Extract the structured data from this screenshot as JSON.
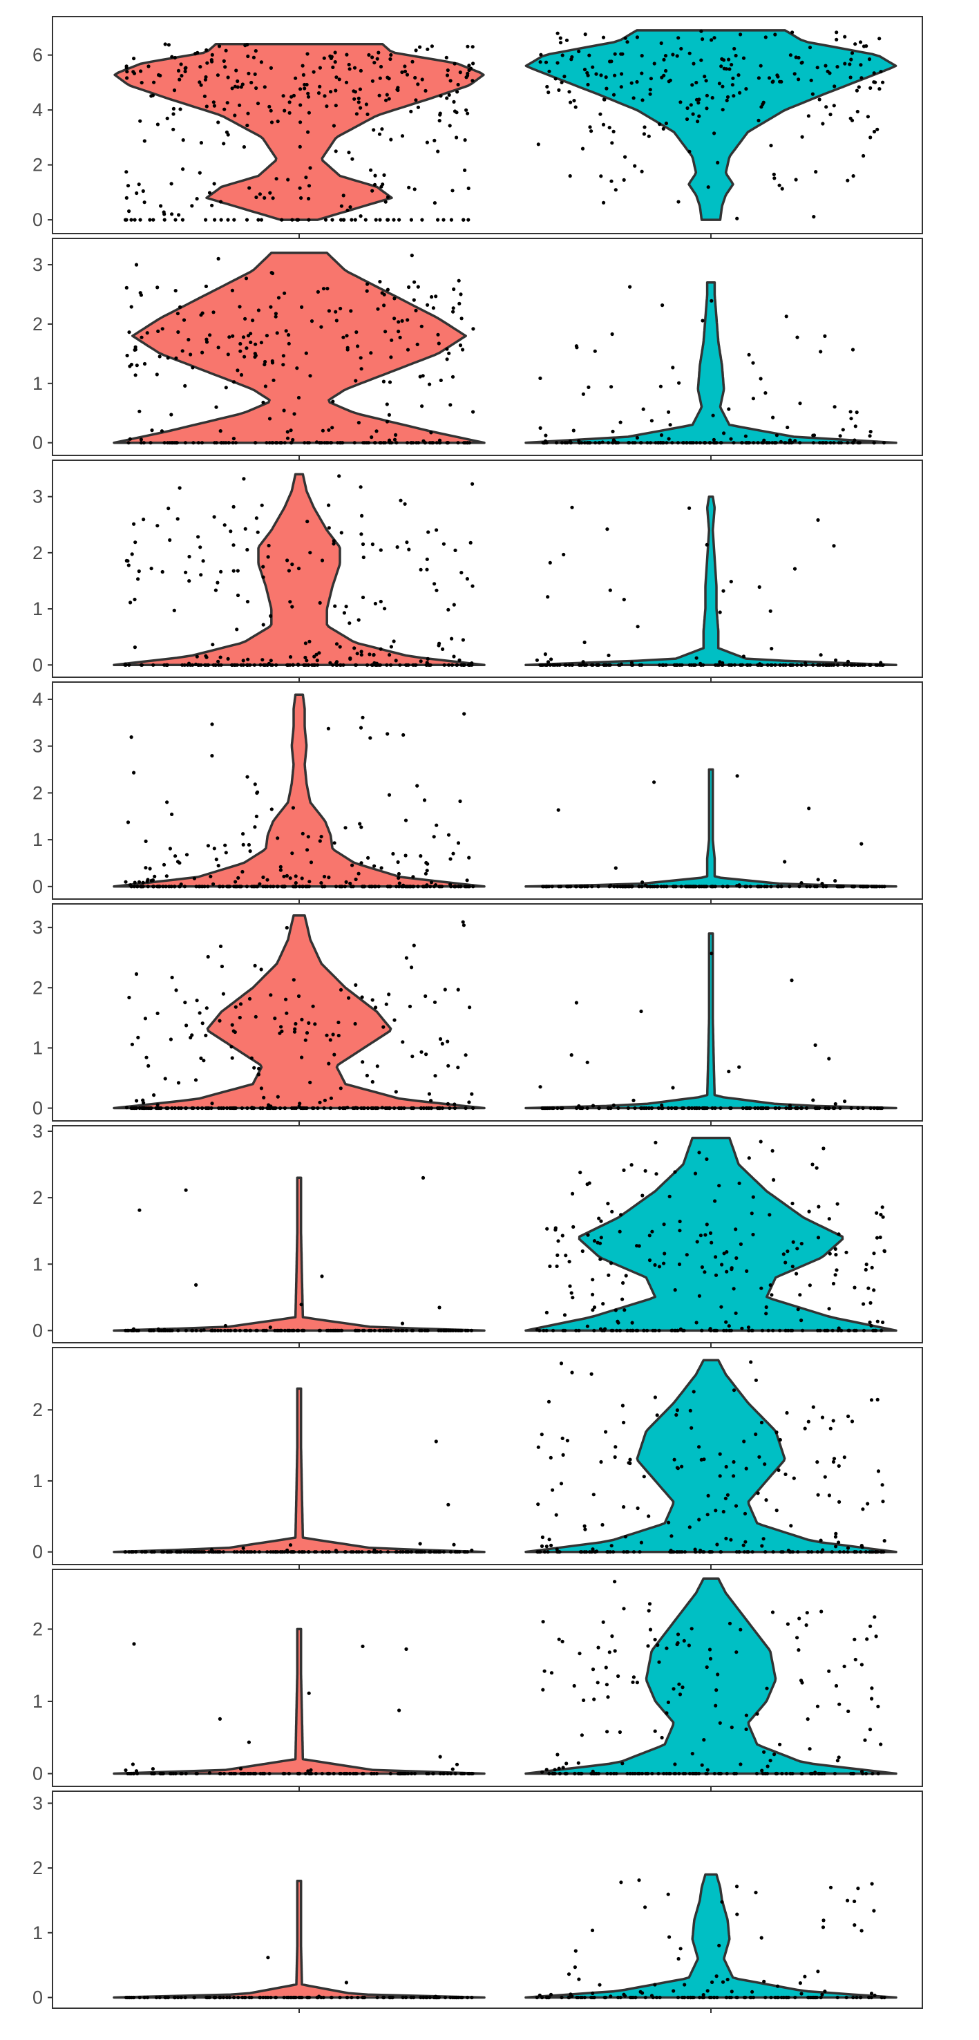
{
  "chart_data": {
    "type": "violin",
    "colors": {
      "group_1": "#F8766D",
      "group_2": "#00BFC4"
    },
    "panels": [
      {
        "ylim": [
          -0.3,
          7.2
        ],
        "ticks": [
          0,
          2,
          4,
          6
        ],
        "tick_labels": [
          "0",
          "2",
          "4",
          "6"
        ],
        "groups": [
          {
            "color": "#F8766D",
            "max": 6.4,
            "zero_frac": 0.12,
            "point_count": 330,
            "profile": [
              [
                0,
                0.1
              ],
              [
                0.4,
                0.3
              ],
              [
                0.8,
                0.5
              ],
              [
                1.2,
                0.42
              ],
              [
                1.6,
                0.22
              ],
              [
                2.2,
                0.12
              ],
              [
                3.0,
                0.2
              ],
              [
                3.8,
                0.42
              ],
              [
                4.4,
                0.7
              ],
              [
                4.9,
                0.92
              ],
              [
                5.3,
                1.0
              ],
              [
                5.7,
                0.85
              ],
              [
                6.1,
                0.5
              ],
              [
                6.4,
                0.45
              ]
            ]
          },
          {
            "color": "#00BFC4",
            "max": 6.9,
            "zero_frac": 0.0,
            "point_count": 230,
            "profile": [
              [
                0,
                0.05
              ],
              [
                0.5,
                0.06
              ],
              [
                0.9,
                0.08
              ],
              [
                1.3,
                0.12
              ],
              [
                1.7,
                0.08
              ],
              [
                2.3,
                0.1
              ],
              [
                3.2,
                0.2
              ],
              [
                4.0,
                0.4
              ],
              [
                4.6,
                0.62
              ],
              [
                5.2,
                0.85
              ],
              [
                5.6,
                1.0
              ],
              [
                6.0,
                0.9
              ],
              [
                6.5,
                0.5
              ],
              [
                6.9,
                0.4
              ]
            ]
          }
        ]
      },
      {
        "ylim": [
          -0.12,
          3.35
        ],
        "ticks": [
          0,
          1,
          2,
          3
        ],
        "tick_labels": [
          "0",
          "1",
          "2",
          "3"
        ],
        "groups": [
          {
            "color": "#F8766D",
            "max": 3.2,
            "zero_frac": 0.3,
            "point_count": 300,
            "profile": [
              [
                0,
                1.0
              ],
              [
                0.2,
                0.7
              ],
              [
                0.5,
                0.3
              ],
              [
                0.7,
                0.15
              ],
              [
                0.9,
                0.25
              ],
              [
                1.2,
                0.5
              ],
              [
                1.5,
                0.75
              ],
              [
                1.8,
                0.9
              ],
              [
                2.1,
                0.75
              ],
              [
                2.5,
                0.5
              ],
              [
                2.9,
                0.25
              ],
              [
                3.2,
                0.15
              ]
            ]
          },
          {
            "color": "#00BFC4",
            "max": 2.7,
            "zero_frac": 0.7,
            "point_count": 180,
            "profile": [
              [
                0,
                1.0
              ],
              [
                0.1,
                0.45
              ],
              [
                0.3,
                0.1
              ],
              [
                0.6,
                0.05
              ],
              [
                0.9,
                0.07
              ],
              [
                1.3,
                0.06
              ],
              [
                1.7,
                0.04
              ],
              [
                2.1,
                0.03
              ],
              [
                2.5,
                0.02
              ],
              [
                2.7,
                0.02
              ]
            ]
          }
        ]
      },
      {
        "ylim": [
          -0.12,
          3.55
        ],
        "ticks": [
          0,
          1,
          2,
          3
        ],
        "tick_labels": [
          "0",
          "1",
          "2",
          "3"
        ],
        "groups": [
          {
            "color": "#F8766D",
            "max": 3.4,
            "zero_frac": 0.4,
            "point_count": 280,
            "profile": [
              [
                0,
                1.0
              ],
              [
                0.15,
                0.6
              ],
              [
                0.4,
                0.3
              ],
              [
                0.7,
                0.15
              ],
              [
                1.0,
                0.15
              ],
              [
                1.4,
                0.18
              ],
              [
                1.8,
                0.22
              ],
              [
                2.1,
                0.22
              ],
              [
                2.4,
                0.15
              ],
              [
                2.8,
                0.08
              ],
              [
                3.1,
                0.04
              ],
              [
                3.4,
                0.02
              ]
            ]
          },
          {
            "color": "#00BFC4",
            "max": 3.0,
            "zero_frac": 0.8,
            "point_count": 170,
            "profile": [
              [
                0,
                1.0
              ],
              [
                0.1,
                0.2
              ],
              [
                0.3,
                0.04
              ],
              [
                0.6,
                0.04
              ],
              [
                1.0,
                0.03
              ],
              [
                1.4,
                0.03
              ],
              [
                1.9,
                0.02
              ],
              [
                2.4,
                0.01
              ],
              [
                2.8,
                0.02
              ],
              [
                3.0,
                0.01
              ]
            ]
          }
        ]
      },
      {
        "ylim": [
          -0.15,
          4.25
        ],
        "ticks": [
          0,
          1,
          2,
          3,
          4
        ],
        "tick_labels": [
          "0",
          "1",
          "2",
          "3",
          "4"
        ],
        "groups": [
          {
            "color": "#F8766D",
            "max": 4.1,
            "zero_frac": 0.5,
            "point_count": 260,
            "profile": [
              [
                0,
                1.0
              ],
              [
                0.2,
                0.55
              ],
              [
                0.5,
                0.3
              ],
              [
                0.8,
                0.18
              ],
              [
                1.1,
                0.17
              ],
              [
                1.4,
                0.14
              ],
              [
                1.8,
                0.06
              ],
              [
                2.2,
                0.04
              ],
              [
                2.6,
                0.03
              ],
              [
                3.0,
                0.04
              ],
              [
                3.4,
                0.03
              ],
              [
                3.8,
                0.03
              ],
              [
                4.1,
                0.02
              ]
            ]
          },
          {
            "color": "#00BFC4",
            "max": 2.5,
            "zero_frac": 0.9,
            "point_count": 150,
            "profile": [
              [
                0,
                1.0
              ],
              [
                0.05,
                0.4
              ],
              [
                0.2,
                0.02
              ],
              [
                0.6,
                0.02
              ],
              [
                1.0,
                0.01
              ],
              [
                1.5,
                0.01
              ],
              [
                2.0,
                0.01
              ],
              [
                2.5,
                0.01
              ]
            ]
          }
        ]
      },
      {
        "ylim": [
          -0.12,
          3.3
        ],
        "ticks": [
          0,
          1,
          2,
          3
        ],
        "tick_labels": [
          "0",
          "1",
          "2",
          "3"
        ],
        "groups": [
          {
            "color": "#F8766D",
            "max": 3.2,
            "zero_frac": 0.45,
            "point_count": 270,
            "profile": [
              [
                0,
                1.0
              ],
              [
                0.15,
                0.55
              ],
              [
                0.4,
                0.25
              ],
              [
                0.7,
                0.2
              ],
              [
                1.0,
                0.35
              ],
              [
                1.3,
                0.5
              ],
              [
                1.6,
                0.42
              ],
              [
                2.0,
                0.25
              ],
              [
                2.4,
                0.12
              ],
              [
                2.8,
                0.06
              ],
              [
                3.2,
                0.03
              ]
            ]
          },
          {
            "color": "#00BFC4",
            "max": 2.9,
            "zero_frac": 0.9,
            "point_count": 140,
            "profile": [
              [
                0,
                1.0
              ],
              [
                0.05,
                0.4
              ],
              [
                0.2,
                0.02
              ],
              [
                0.8,
                0.015
              ],
              [
                1.5,
                0.01
              ],
              [
                2.2,
                0.01
              ],
              [
                2.9,
                0.01
              ]
            ]
          }
        ]
      },
      {
        "ylim": [
          -0.1,
          3.0
        ],
        "ticks": [
          0,
          1,
          2,
          3
        ],
        "tick_labels": [
          "0",
          "1",
          "2",
          "3"
        ],
        "groups": [
          {
            "color": "#F8766D",
            "max": 2.3,
            "zero_frac": 0.9,
            "point_count": 150,
            "profile": [
              [
                0,
                1.0
              ],
              [
                0.05,
                0.4
              ],
              [
                0.2,
                0.02
              ],
              [
                0.8,
                0.015
              ],
              [
                1.5,
                0.01
              ],
              [
                2.3,
                0.01
              ]
            ]
          },
          {
            "color": "#00BFC4",
            "max": 2.9,
            "zero_frac": 0.3,
            "point_count": 260,
            "profile": [
              [
                0,
                1.0
              ],
              [
                0.2,
                0.65
              ],
              [
                0.5,
                0.3
              ],
              [
                0.8,
                0.35
              ],
              [
                1.1,
                0.6
              ],
              [
                1.4,
                0.72
              ],
              [
                1.7,
                0.5
              ],
              [
                2.1,
                0.3
              ],
              [
                2.5,
                0.15
              ],
              [
                2.9,
                0.1
              ]
            ]
          }
        ]
      },
      {
        "ylim": [
          -0.1,
          2.8
        ],
        "ticks": [
          0,
          1,
          2
        ],
        "tick_labels": [
          "0",
          "1",
          "2"
        ],
        "groups": [
          {
            "color": "#F8766D",
            "max": 2.3,
            "zero_frac": 0.9,
            "point_count": 160,
            "profile": [
              [
                0,
                1.0
              ],
              [
                0.05,
                0.4
              ],
              [
                0.2,
                0.02
              ],
              [
                0.8,
                0.015
              ],
              [
                1.5,
                0.01
              ],
              [
                2.3,
                0.01
              ]
            ]
          },
          {
            "color": "#00BFC4",
            "max": 2.7,
            "zero_frac": 0.4,
            "point_count": 230,
            "profile": [
              [
                0,
                1.0
              ],
              [
                0.15,
                0.55
              ],
              [
                0.4,
                0.25
              ],
              [
                0.7,
                0.2
              ],
              [
                1.0,
                0.3
              ],
              [
                1.3,
                0.4
              ],
              [
                1.7,
                0.35
              ],
              [
                2.1,
                0.2
              ],
              [
                2.5,
                0.08
              ],
              [
                2.7,
                0.04
              ]
            ]
          }
        ]
      },
      {
        "ylim": [
          -0.1,
          2.75
        ],
        "ticks": [
          0,
          1,
          2
        ],
        "tick_labels": [
          "0",
          "1",
          "2"
        ],
        "groups": [
          {
            "color": "#F8766D",
            "max": 2.0,
            "zero_frac": 0.9,
            "point_count": 140,
            "profile": [
              [
                0,
                1.0
              ],
              [
                0.05,
                0.4
              ],
              [
                0.2,
                0.02
              ],
              [
                0.8,
                0.015
              ],
              [
                1.4,
                0.01
              ],
              [
                2.0,
                0.01
              ]
            ]
          },
          {
            "color": "#00BFC4",
            "max": 2.7,
            "zero_frac": 0.45,
            "point_count": 220,
            "profile": [
              [
                0,
                1.0
              ],
              [
                0.15,
                0.5
              ],
              [
                0.4,
                0.25
              ],
              [
                0.7,
                0.2
              ],
              [
                1.0,
                0.3
              ],
              [
                1.3,
                0.35
              ],
              [
                1.7,
                0.32
              ],
              [
                2.1,
                0.2
              ],
              [
                2.5,
                0.08
              ],
              [
                2.7,
                0.04
              ]
            ]
          }
        ]
      },
      {
        "ylim": [
          -0.08,
          3.1
        ],
        "ticks": [
          0,
          1,
          2,
          3
        ],
        "tick_labels": [
          "0",
          "1",
          "2",
          "3"
        ],
        "groups": [
          {
            "color": "#F8766D",
            "max": 1.8,
            "zero_frac": 0.95,
            "point_count": 120,
            "profile": [
              [
                0,
                1.0
              ],
              [
                0.05,
                0.3
              ],
              [
                0.2,
                0.015
              ],
              [
                0.8,
                0.01
              ],
              [
                1.3,
                0.01
              ],
              [
                1.8,
                0.01
              ]
            ]
          },
          {
            "color": "#00BFC4",
            "max": 1.9,
            "zero_frac": 0.6,
            "point_count": 150,
            "profile": [
              [
                0,
                1.0
              ],
              [
                0.1,
                0.5
              ],
              [
                0.3,
                0.12
              ],
              [
                0.6,
                0.07
              ],
              [
                0.9,
                0.1
              ],
              [
                1.2,
                0.09
              ],
              [
                1.5,
                0.06
              ],
              [
                1.7,
                0.05
              ],
              [
                1.9,
                0.03
              ]
            ]
          }
        ]
      }
    ]
  }
}
